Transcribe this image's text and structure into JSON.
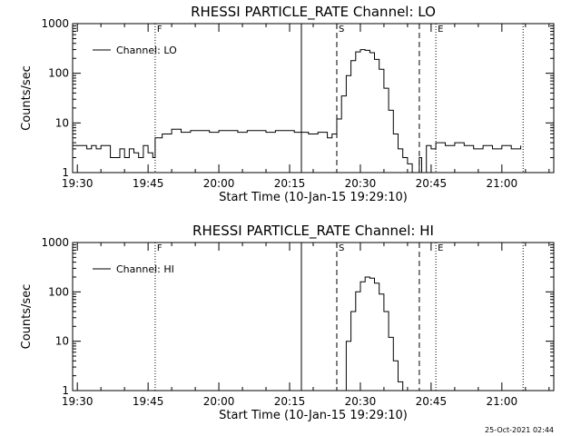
{
  "timestamp": "25-Oct-2021 02:44",
  "chart_data": [
    {
      "type": "line",
      "title": "RHESSI PARTICLE_RATE Channel: LO",
      "xlabel": "Start Time (10-Jan-15 19:29:10)",
      "ylabel": "Counts/sec",
      "yscale": "log",
      "ylim": [
        1,
        1000
      ],
      "xlim": [
        "19:29",
        "21:11"
      ],
      "x_ticks": [
        "19:30",
        "19:45",
        "20:00",
        "20:15",
        "20:30",
        "20:45",
        "21:00"
      ],
      "y_ticks": [
        "1",
        "10",
        "100",
        "1000"
      ],
      "legend": {
        "position": "top-left",
        "entries": [
          "Channel: LO"
        ]
      },
      "markers": [
        {
          "label": "F",
          "time": "19:46.5",
          "style": "dotted"
        },
        {
          "label": "",
          "time": "20:17.5",
          "style": "solid"
        },
        {
          "label": "S",
          "time": "20:25",
          "style": "dashed"
        },
        {
          "label": "",
          "time": "20:42.5",
          "style": "dashed"
        },
        {
          "label": "E",
          "time": "20:46",
          "style": "dotted"
        },
        {
          "label": "",
          "time": "21:04.5",
          "style": "dotted"
        }
      ],
      "series": [
        {
          "name": "Channel: LO",
          "time": [
            "19:29",
            "19:31",
            "19:32",
            "19:33",
            "19:34",
            "19:35",
            "19:36",
            "19:37",
            "19:38",
            "19:39",
            "19:40",
            "19:41",
            "19:42",
            "19:43",
            "19:44",
            "19:45",
            "19:46",
            "19:46.5",
            "19:48",
            "19:50",
            "19:52",
            "19:54",
            "19:56",
            "19:58",
            "20:00",
            "20:02",
            "20:04",
            "20:06",
            "20:08",
            "20:10",
            "20:12",
            "20:14",
            "20:16",
            "20:17.5",
            "20:19",
            "20:21",
            "20:23",
            "20:24",
            "20:25",
            "20:26",
            "20:27",
            "20:28",
            "20:29",
            "20:30",
            "20:31",
            "20:32",
            "20:33",
            "20:34",
            "20:35",
            "20:36",
            "20:37",
            "20:38",
            "20:39",
            "20:40",
            "20:41",
            "20:42",
            "20:42.5",
            "20:43",
            "20:44",
            "20:45",
            "20:46",
            "20:48",
            "20:50",
            "20:52",
            "20:54",
            "20:56",
            "20:58",
            "21:00",
            "21:02",
            "21:04"
          ],
          "values": [
            3.5,
            3.5,
            3.0,
            3.5,
            3.0,
            3.5,
            3.5,
            2.0,
            2.0,
            3.0,
            2.0,
            3.0,
            2.5,
            2.0,
            3.5,
            2.5,
            2.0,
            5,
            6,
            7.5,
            6.5,
            7,
            7,
            6.5,
            7,
            7,
            6.5,
            7,
            7,
            6.5,
            7,
            7,
            6.5,
            6.5,
            6,
            6.5,
            5,
            6,
            12,
            35,
            90,
            180,
            270,
            300,
            290,
            260,
            190,
            120,
            50,
            18,
            6,
            3,
            2,
            1.5,
            1.0,
            0.8,
            2.0,
            0.7,
            3.5,
            3.0,
            4.0,
            3.5,
            4.0,
            3.5,
            3.0,
            3.5,
            3.0,
            3.5,
            3.0,
            3.5
          ]
        }
      ]
    },
    {
      "type": "line",
      "title": "RHESSI PARTICLE_RATE Channel: HI",
      "xlabel": "Start Time (10-Jan-15 19:29:10)",
      "ylabel": "Counts/sec",
      "yscale": "log",
      "ylim": [
        1,
        1000
      ],
      "xlim": [
        "19:29",
        "21:11"
      ],
      "x_ticks": [
        "19:30",
        "19:45",
        "20:00",
        "20:15",
        "20:30",
        "20:45",
        "21:00"
      ],
      "y_ticks": [
        "1",
        "10",
        "100",
        "1000"
      ],
      "legend": {
        "position": "top-left",
        "entries": [
          "Channel: HI"
        ]
      },
      "markers": [
        {
          "label": "F",
          "time": "19:46.5",
          "style": "dotted"
        },
        {
          "label": "",
          "time": "20:17.5",
          "style": "solid"
        },
        {
          "label": "S",
          "time": "20:25",
          "style": "dashed"
        },
        {
          "label": "",
          "time": "20:42.5",
          "style": "dashed"
        },
        {
          "label": "E",
          "time": "20:46",
          "style": "dotted"
        },
        {
          "label": "",
          "time": "21:04.5",
          "style": "dotted"
        }
      ],
      "series": [
        {
          "name": "Channel: HI",
          "time": [
            "20:26",
            "20:27",
            "20:28",
            "20:29",
            "20:30",
            "20:31",
            "20:32",
            "20:33",
            "20:34",
            "20:35",
            "20:36",
            "20:37",
            "20:38",
            "20:39"
          ],
          "values": [
            1.0,
            10,
            40,
            100,
            160,
            200,
            190,
            150,
            90,
            40,
            12,
            4,
            1.5,
            1.0
          ]
        }
      ]
    }
  ]
}
